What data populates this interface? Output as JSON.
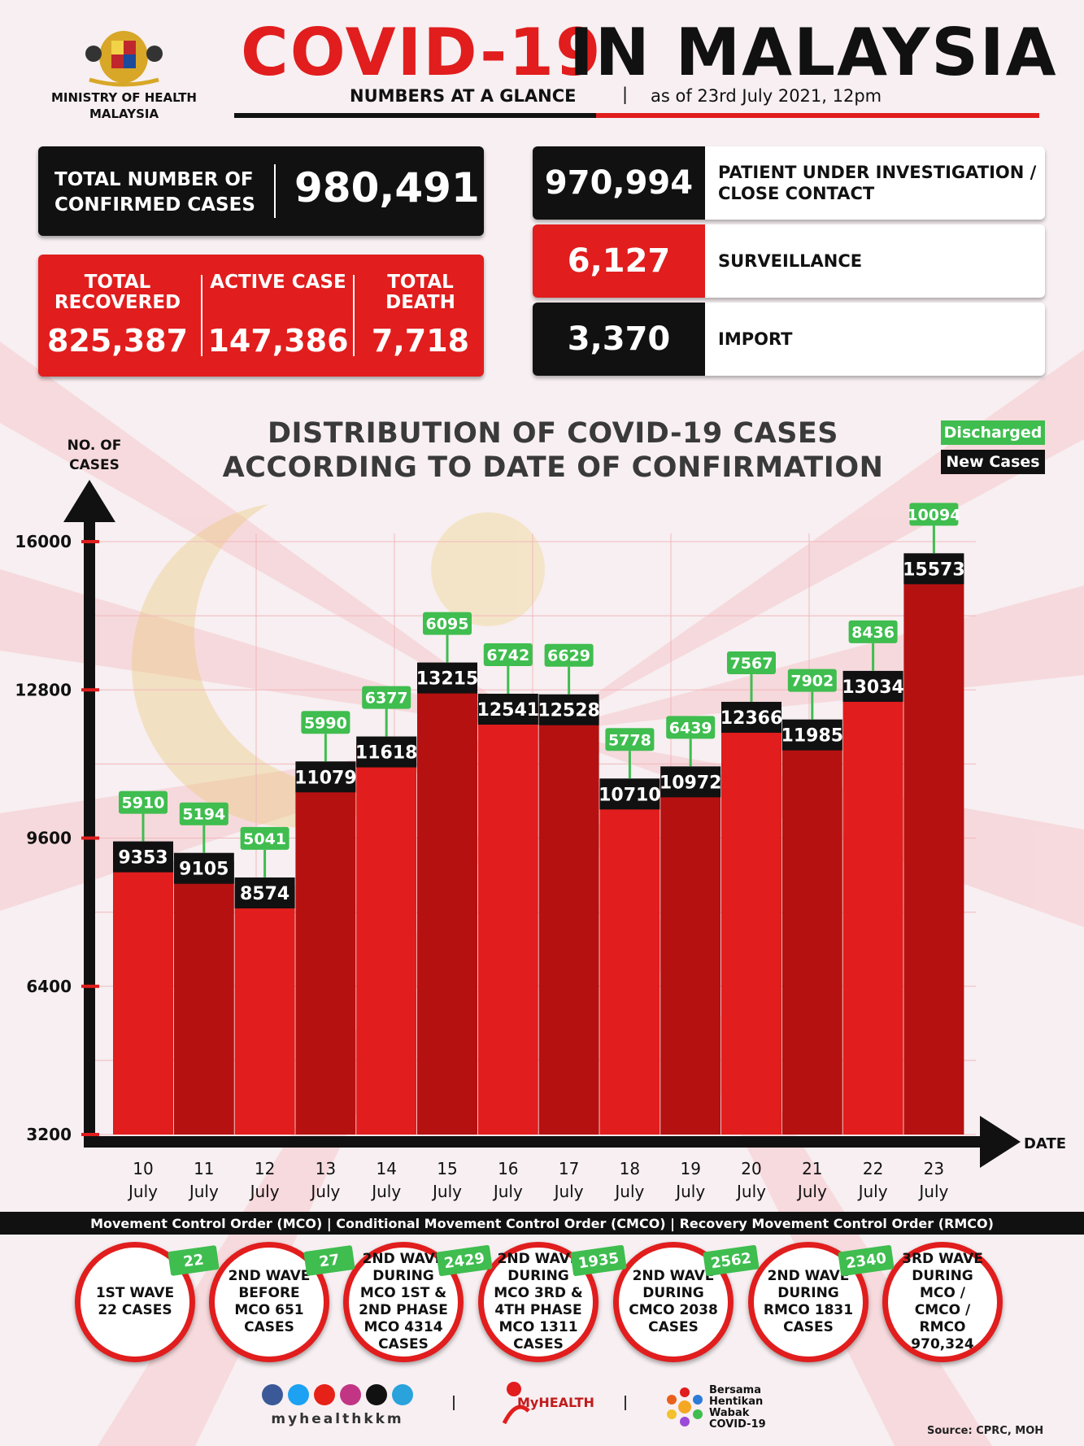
{
  "header": {
    "ministry": "MINISTRY OF HEALTH MALAYSIA",
    "title_part1": "COVID-19",
    "title_part2": "IN MALAYSIA",
    "subtitle": "NUMBERS AT A GLANCE",
    "separator": "|",
    "as_of": "as of 23rd July 2021, 12pm"
  },
  "stats": {
    "confirmed_label": "TOTAL NUMBER OF CONFIRMED CASES",
    "confirmed_value": "980,491",
    "recovered_label": "TOTAL RECOVERED",
    "recovered_value": "825,387",
    "active_label": "ACTIVE CASE",
    "active_value": "147,386",
    "death_label": "TOTAL DEATH",
    "death_value": "7,718",
    "breakdown": [
      {
        "value": "970,994",
        "label": "PATIENT UNDER INVESTIGATION / CLOSE CONTACT",
        "color": "#111111"
      },
      {
        "value": "6,127",
        "label": "SURVEILLANCE",
        "color": "#e11d1d"
      },
      {
        "value": "3,370",
        "label": "IMPORT",
        "color": "#111111"
      }
    ]
  },
  "chart_data": {
    "type": "bar",
    "title": "DISTRIBUTION OF COVID-19 CASES ACCORDING TO DATE OF CONFIRMATION",
    "ylabel": "NO. OF CASES",
    "xlabel": "DATE",
    "ylim": [
      3200,
      16000
    ],
    "yticks": [
      3200,
      6400,
      9600,
      12800,
      16000
    ],
    "legend": [
      "Discharged",
      "New Cases"
    ],
    "legend_placement": "top-right",
    "categories": [
      [
        "10",
        "July"
      ],
      [
        "11",
        "July"
      ],
      [
        "12",
        "July"
      ],
      [
        "13",
        "July"
      ],
      [
        "14",
        "July"
      ],
      [
        "15",
        "July"
      ],
      [
        "16",
        "July"
      ],
      [
        "17",
        "July"
      ],
      [
        "18",
        "July"
      ],
      [
        "19",
        "July"
      ],
      [
        "20",
        "July"
      ],
      [
        "21",
        "July"
      ],
      [
        "22",
        "July"
      ],
      [
        "23",
        "July"
      ]
    ],
    "series": [
      {
        "name": "New Cases",
        "values": [
          9353,
          9105,
          8574,
          11079,
          11618,
          13215,
          12541,
          12528,
          10710,
          10972,
          12366,
          11985,
          13034,
          15573
        ]
      },
      {
        "name": "Discharged",
        "values": [
          5910,
          5194,
          5041,
          5990,
          6377,
          6095,
          6742,
          6629,
          5778,
          6439,
          7567,
          7902,
          8436,
          10094
        ]
      }
    ],
    "colors": {
      "bar": "#e11d1d",
      "bar_dark": "#b51111",
      "label_new": "#111111",
      "label_discharged": "#3fbd4f"
    }
  },
  "waves": {
    "bar_text": "Movement Control Order (MCO) | Conditional Movement Control Order (CMCO) | Recovery Movement Control Order (RMCO)",
    "items": [
      {
        "text": "1ST WAVE 22 CASES",
        "badge": "22"
      },
      {
        "text": "2ND WAVE BEFORE MCO 651 CASES",
        "badge": "27"
      },
      {
        "text": "2ND WAVE DURING MCO 1ST & 2ND PHASE MCO 4314 CASES",
        "badge": "2429"
      },
      {
        "text": "2ND WAVE DURING MCO 3RD & 4TH PHASE MCO 1311 CASES",
        "badge": "1935"
      },
      {
        "text": "2ND WAVE DURING CMCO 2038 CASES",
        "badge": "2562"
      },
      {
        "text": "2ND WAVE DURING RMCO 1831 CASES",
        "badge": "2340"
      },
      {
        "text": "3RD WAVE DURING MCO / CMCO / RMCO 970,324",
        "badge": ""
      }
    ]
  },
  "footer": {
    "handle": "myhealthkkm",
    "myhealth": "MyHEALTH",
    "bersama": "Bersama Hentikan Wabak COVID-19",
    "source": "Source: CPRC, MOH"
  }
}
